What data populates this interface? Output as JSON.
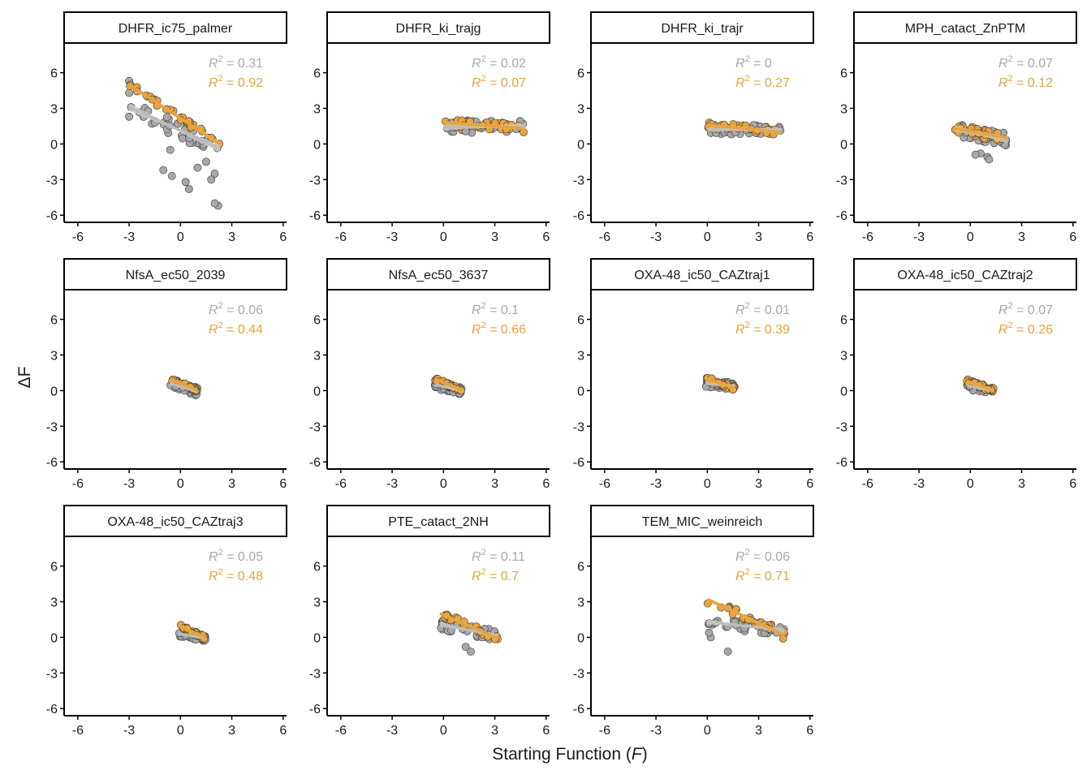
{
  "chart_data": {
    "type": "scatter",
    "xlabel": "Starting Function (",
    "xlabel_var": "F",
    "xlabel_end": ")",
    "ylabel": "ΔF",
    "xlim": [
      -6.8,
      6.2
    ],
    "ylim": [
      -6.6,
      8.5
    ],
    "x_ticks": [
      -6,
      -3,
      0,
      3,
      6
    ],
    "y_ticks": [
      6,
      3,
      0,
      -3,
      -6
    ],
    "x_tick_labels": [
      "-6",
      "-3",
      "0",
      "3",
      "6"
    ],
    "y_tick_labels": [
      "6",
      "3",
      "0",
      "-3",
      "-6"
    ],
    "r2_label": "R",
    "r2_sup": "2",
    "eq_sign": " = ",
    "colors": {
      "grey_points": "#a8a8a8",
      "orange_points": "#e8a33d",
      "grey_line": "#bdbdbd",
      "orange_line": "#e8a33d",
      "grey_text": "#a8a8a8",
      "orange_text": "#e8a33d"
    },
    "panels": [
      {
        "title": "DHFR_ic75_palmer",
        "r2_grey": "0.31",
        "r2_orange": "0.92",
        "x_range": [
          -3,
          2.3
        ],
        "grey_line": [
          [
            -3,
            3.1
          ],
          [
            2.3,
            -0.4
          ]
        ],
        "orange_line": [
          [
            -3,
            5.0
          ],
          [
            2.3,
            0.0
          ]
        ],
        "grey_spread": 0.7,
        "orange_spread": 0.25,
        "outliers": [
          [
            -1.0,
            -2.2
          ],
          [
            -0.5,
            -2.7
          ],
          [
            0.5,
            -3.8
          ],
          [
            0.3,
            -3.2
          ],
          [
            1.0,
            -2.0
          ],
          [
            2.0,
            -2.5
          ],
          [
            2.2,
            -5.2
          ],
          [
            2.0,
            -5.0
          ],
          [
            -3,
            2.3
          ],
          [
            -3,
            4.3
          ],
          [
            -3,
            5.3
          ],
          [
            -0.6,
            -0.5
          ],
          [
            1.5,
            -1.5
          ],
          [
            1.8,
            -3.0
          ]
        ]
      },
      {
        "title": "DHFR_ki_trajg",
        "r2_grey": "0.02",
        "r2_orange": "0.07",
        "x_range": [
          0,
          4.8
        ],
        "grey_line": [
          [
            0,
            1.4
          ],
          [
            4.8,
            1.5
          ]
        ],
        "orange_line": [
          [
            0,
            1.8
          ],
          [
            4.8,
            1.3
          ]
        ],
        "grey_spread": 0.5,
        "orange_spread": 0.35,
        "outliers": []
      },
      {
        "title": "DHFR_ki_trajr",
        "r2_grey": "0",
        "r2_orange": "0.27",
        "x_range": [
          0,
          4.3
        ],
        "grey_line": [
          [
            0,
            1.2
          ],
          [
            4.3,
            1.2
          ]
        ],
        "orange_line": [
          [
            0,
            1.6
          ],
          [
            4.3,
            1.0
          ]
        ],
        "grey_spread": 0.4,
        "orange_spread": 0.3,
        "outliers": []
      },
      {
        "title": "MPH_catact_ZnPTM",
        "r2_grey": "0.07",
        "r2_orange": "0.12",
        "x_range": [
          -0.9,
          2.2
        ],
        "grey_line": [
          [
            -0.9,
            1.3
          ],
          [
            2.2,
            0.3
          ]
        ],
        "orange_line": [
          [
            -0.9,
            1.3
          ],
          [
            2.2,
            0.5
          ]
        ],
        "grey_spread": 0.6,
        "orange_spread": 0.4,
        "outliers": [
          [
            0.6,
            -0.8
          ],
          [
            1.0,
            -1.1
          ],
          [
            1.1,
            -1.3
          ],
          [
            0.3,
            -0.9
          ]
        ]
      },
      {
        "title": "NfsA_ec50_2039",
        "r2_grey": "0.06",
        "r2_orange": "0.44",
        "x_range": [
          -0.6,
          1.0
        ],
        "grey_line": [
          [
            -0.6,
            0.6
          ],
          [
            1.0,
            -0.1
          ]
        ],
        "orange_line": [
          [
            -0.6,
            1.0
          ],
          [
            1.0,
            0.0
          ]
        ],
        "grey_spread": 0.35,
        "orange_spread": 0.15,
        "outliers": []
      },
      {
        "title": "NfsA_ec50_3637",
        "r2_grey": "0.1",
        "r2_orange": "0.66",
        "x_range": [
          -0.5,
          1.1
        ],
        "grey_line": [
          [
            -0.5,
            0.5
          ],
          [
            1.1,
            0.0
          ]
        ],
        "orange_line": [
          [
            -0.5,
            1.0
          ],
          [
            1.1,
            0.0
          ]
        ],
        "grey_spread": 0.35,
        "orange_spread": 0.15,
        "outliers": []
      },
      {
        "title": "OXA-48_ic50_CAZtraj1",
        "r2_grey": "0.01",
        "r2_orange": "0.39",
        "x_range": [
          -0.1,
          1.6
        ],
        "grey_line": [
          [
            -0.1,
            0.6
          ],
          [
            1.6,
            0.4
          ]
        ],
        "orange_line": [
          [
            -0.1,
            1.0
          ],
          [
            1.6,
            0.2
          ]
        ],
        "grey_spread": 0.3,
        "orange_spread": 0.2,
        "outliers": []
      },
      {
        "title": "OXA-48_ic50_CAZtraj2",
        "r2_grey": "0.07",
        "r2_orange": "0.26",
        "x_range": [
          -0.2,
          1.4
        ],
        "grey_line": [
          [
            -0.2,
            0.4
          ],
          [
            1.4,
            0.0
          ]
        ],
        "orange_line": [
          [
            -0.2,
            0.8
          ],
          [
            1.4,
            0.0
          ]
        ],
        "grey_spread": 0.3,
        "orange_spread": 0.2,
        "outliers": []
      },
      {
        "title": "OXA-48_ic50_CAZtraj3",
        "r2_grey": "0.05",
        "r2_orange": "0.48",
        "x_range": [
          -0.1,
          1.5
        ],
        "grey_line": [
          [
            -0.1,
            0.3
          ],
          [
            1.5,
            -0.1
          ]
        ],
        "orange_line": [
          [
            -0.1,
            1.0
          ],
          [
            1.5,
            -0.1
          ]
        ],
        "grey_spread": 0.25,
        "orange_spread": 0.15,
        "outliers": []
      },
      {
        "title": "PTE_catact_2NH",
        "r2_grey": "0.11",
        "r2_orange": "0.7",
        "x_range": [
          -0.2,
          3.2
        ],
        "grey_line": [
          [
            -0.2,
            1.1
          ],
          [
            3.2,
            0.1
          ]
        ],
        "orange_line": [
          [
            -0.2,
            2.0
          ],
          [
            3.2,
            -0.1
          ]
        ],
        "grey_spread": 0.45,
        "orange_spread": 0.25,
        "outliers": [
          [
            1.6,
            -1.2
          ],
          [
            1.3,
            -0.8
          ]
        ]
      },
      {
        "title": "TEM_MIC_weinreich",
        "r2_grey": "0.06",
        "r2_orange": "0.71",
        "x_range": [
          0,
          4.5
        ],
        "grey_line": [
          [
            0,
            1.3
          ],
          [
            4.5,
            0.6
          ]
        ],
        "orange_line": [
          [
            0,
            3.2
          ],
          [
            4.5,
            0.2
          ]
        ],
        "grey_spread": 0.45,
        "orange_spread": 0.35,
        "outliers": [
          [
            1.2,
            -1.2
          ],
          [
            0.1,
            1.2
          ],
          [
            0.2,
            0.0
          ],
          [
            0.1,
            0.4
          ]
        ]
      }
    ]
  }
}
